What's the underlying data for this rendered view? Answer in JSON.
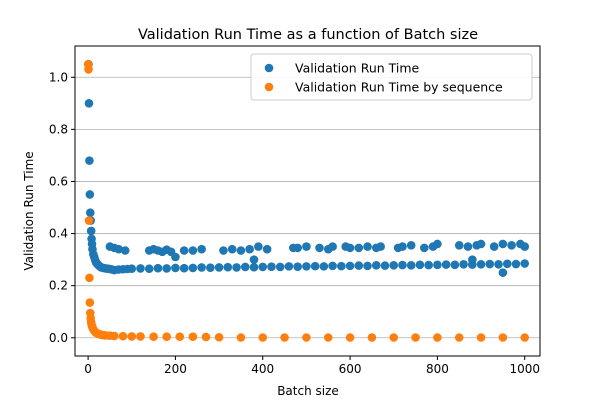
{
  "chart_data": {
    "type": "scatter",
    "title": "Validation Run Time as a function of Batch size",
    "xlabel": "Batch size",
    "ylabel": "Validation Run Time",
    "xlim": [
      -30,
      1035
    ],
    "ylim": [
      -0.07,
      1.12
    ],
    "x_ticks": [
      0,
      200,
      400,
      600,
      800,
      1000
    ],
    "y_ticks": [
      0.0,
      0.2,
      0.4,
      0.6,
      0.8,
      1.0
    ],
    "x_tick_labels": [
      "0",
      "200",
      "400",
      "600",
      "800",
      "1000"
    ],
    "y_tick_labels": [
      "0.0",
      "0.2",
      "0.4",
      "0.6",
      "0.8",
      "1.0"
    ],
    "grid": "horizontal",
    "legend_position": "top-right",
    "series": [
      {
        "name": "Validation Run Time",
        "color": "#1f77b4",
        "x": [
          1,
          2,
          3,
          4,
          5,
          6,
          7,
          8,
          9,
          10,
          12,
          14,
          16,
          18,
          20,
          23,
          26,
          30,
          35,
          40,
          45,
          50,
          55,
          60,
          70,
          80,
          90,
          100,
          120,
          140,
          160,
          180,
          200,
          220,
          240,
          260,
          280,
          300,
          320,
          340,
          360,
          380,
          400,
          420,
          440,
          460,
          480,
          500,
          520,
          540,
          560,
          580,
          600,
          620,
          640,
          660,
          680,
          700,
          720,
          740,
          760,
          780,
          800,
          820,
          840,
          860,
          880,
          900,
          920,
          940,
          960,
          980,
          1000,
          50,
          60,
          70,
          85,
          140,
          150,
          160,
          170,
          180,
          190,
          220,
          240,
          260,
          310,
          330,
          350,
          370,
          390,
          410,
          470,
          480,
          500,
          530,
          550,
          560,
          590,
          600,
          620,
          640,
          660,
          670,
          710,
          720,
          740,
          770,
          790,
          800,
          850,
          870,
          890,
          900,
          930,
          950,
          970,
          990,
          1000,
          200,
          380,
          880,
          950
        ],
        "y": [
          1.05,
          0.9,
          0.68,
          0.55,
          0.48,
          0.45,
          0.41,
          0.38,
          0.36,
          0.34,
          0.32,
          0.31,
          0.3,
          0.29,
          0.285,
          0.28,
          0.275,
          0.27,
          0.268,
          0.266,
          0.265,
          0.264,
          0.262,
          0.26,
          0.262,
          0.263,
          0.264,
          0.265,
          0.266,
          0.265,
          0.267,
          0.266,
          0.268,
          0.267,
          0.268,
          0.27,
          0.269,
          0.27,
          0.271,
          0.27,
          0.272,
          0.271,
          0.272,
          0.273,
          0.272,
          0.274,
          0.273,
          0.274,
          0.275,
          0.274,
          0.276,
          0.275,
          0.276,
          0.277,
          0.276,
          0.278,
          0.277,
          0.278,
          0.279,
          0.278,
          0.28,
          0.279,
          0.28,
          0.281,
          0.28,
          0.282,
          0.281,
          0.282,
          0.283,
          0.282,
          0.284,
          0.283,
          0.285,
          0.35,
          0.345,
          0.34,
          0.335,
          0.335,
          0.34,
          0.335,
          0.33,
          0.338,
          0.33,
          0.335,
          0.335,
          0.34,
          0.335,
          0.34,
          0.335,
          0.34,
          0.35,
          0.34,
          0.345,
          0.345,
          0.35,
          0.345,
          0.34,
          0.35,
          0.35,
          0.345,
          0.345,
          0.35,
          0.345,
          0.35,
          0.345,
          0.35,
          0.355,
          0.345,
          0.35,
          0.36,
          0.355,
          0.35,
          0.355,
          0.36,
          0.35,
          0.36,
          0.355,
          0.36,
          0.35,
          0.31,
          0.3,
          0.3,
          0.25
        ]
      },
      {
        "name": "Validation Run Time by sequence",
        "color": "#ff7f0e",
        "x": [
          0,
          1,
          2,
          3,
          4,
          5,
          6,
          7,
          8,
          9,
          10,
          12,
          14,
          16,
          18,
          20,
          24,
          28,
          32,
          36,
          40,
          50,
          60,
          80,
          100,
          120,
          150,
          180,
          210,
          240,
          270,
          300,
          350,
          400,
          450,
          500,
          550,
          600,
          650,
          700,
          750,
          800,
          850,
          900,
          950,
          1000
        ],
        "y": [
          1.05,
          1.03,
          0.45,
          0.23,
          0.135,
          0.095,
          0.075,
          0.06,
          0.05,
          0.045,
          0.04,
          0.032,
          0.027,
          0.023,
          0.02,
          0.018,
          0.015,
          0.012,
          0.011,
          0.01,
          0.009,
          0.008,
          0.007,
          0.006,
          0.005,
          0.005,
          0.004,
          0.004,
          0.004,
          0.004,
          0.003,
          0.002,
          0.001,
          0.001,
          0.001,
          0.001,
          0.001,
          0.001,
          0.001,
          0.001,
          0.001,
          0.001,
          0.001,
          0.001,
          0.001,
          0.001
        ]
      }
    ]
  }
}
